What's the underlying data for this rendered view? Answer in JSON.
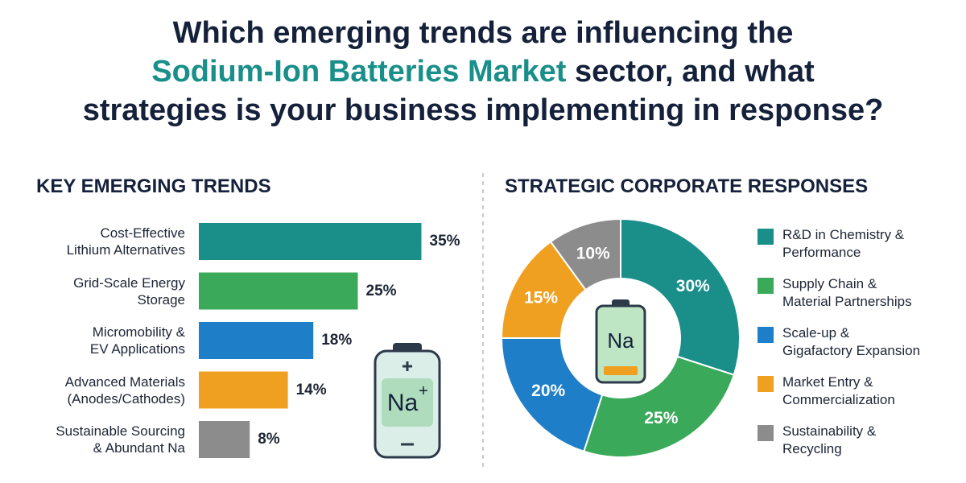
{
  "header": {
    "title_lead": "Which emerging trends are influencing the",
    "title_highlight": "Sodium-Ion Batteries Market",
    "title_rest": " sector, and what",
    "title_last": "strategies is your business implementing in response?"
  },
  "chart_data": [
    {
      "type": "bar",
      "orientation": "horizontal",
      "title": "KEY EMERGING TRENDS",
      "categories": [
        "Cost-Effective\nLithium Alternatives",
        "Grid-Scale Energy\nStorage",
        "Micromobility &\nEV Applications",
        "Advanced Materials\n(Anodes/Cathodes)",
        "Sustainable Sourcing\n& Abundant Na"
      ],
      "values": [
        35,
        25,
        18,
        14,
        8
      ],
      "value_labels": [
        "35%",
        "25%",
        "18%",
        "14%",
        "8%"
      ],
      "colors": [
        "#1a8f8a",
        "#3aaa5a",
        "#1f7ec8",
        "#f0a020",
        "#8c8c8c"
      ]
    },
    {
      "type": "pie",
      "hole": true,
      "title": "STRATEGIC CORPORATE RESPONSES",
      "legend": "right",
      "categories": [
        "R&D in Chemistry &\nPerformance",
        "Supply Chain &\nMaterial Partnerships",
        "Scale-up &\nGigafactory Expansion",
        "Market Entry &\nCommercialization",
        "Sustainability &\nRecycling"
      ],
      "values": [
        30,
        25,
        20,
        15,
        10
      ],
      "value_labels": [
        "30%",
        "25%",
        "20%",
        "15%",
        "10%"
      ],
      "colors": [
        "#1a8f8a",
        "#3aaa5a",
        "#1f7ec8",
        "#f0a020",
        "#8c8c8c"
      ]
    }
  ],
  "icons": {
    "left_battery": {
      "symbol": "Na",
      "charge": "+"
    },
    "center_battery": "Na"
  }
}
